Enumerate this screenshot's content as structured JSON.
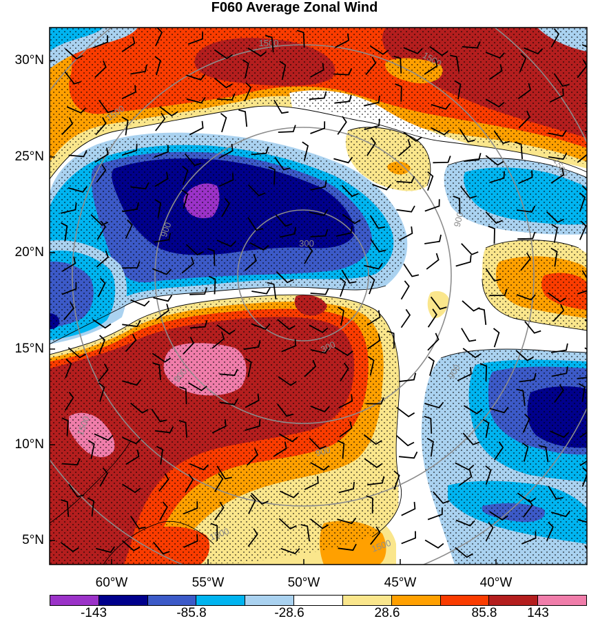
{
  "title": "F060 Average Zonal Wind",
  "lat_labels": [
    "30°N",
    "25°N",
    "20°N",
    "15°N",
    "10°N",
    "5°N"
  ],
  "lon_labels": [
    "60°W",
    "55°W",
    "50°W",
    "45°W",
    "40°W"
  ],
  "colorbar": {
    "colors": [
      "#9b32c8",
      "#00008c",
      "#3c5ac8",
      "#00b4f0",
      "#aad2f0",
      "#ffffff",
      "#fae68c",
      "#ffa000",
      "#fa3c00",
      "#b41e1e",
      "#f07daa"
    ],
    "labels": [
      "-143",
      "-85.8",
      "-28.6",
      "28.6",
      "85.8",
      "143"
    ]
  },
  "contour_labels": [
    "1500",
    "1500",
    "1500",
    "1500",
    "900",
    "900",
    "900",
    "900",
    "900",
    "300",
    "300",
    "1500",
    "1500",
    "1500"
  ]
}
